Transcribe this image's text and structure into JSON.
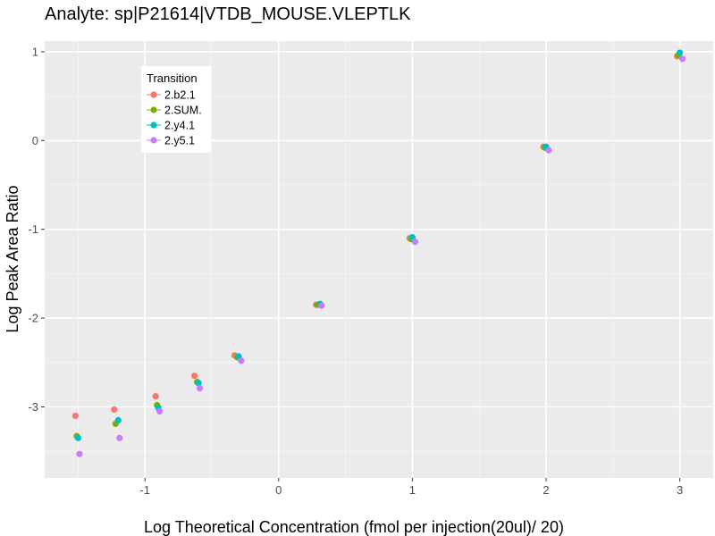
{
  "chart_data": {
    "type": "scatter",
    "title": "Analyte: sp|P21614|VTDB_MOUSE.VLEPTLK",
    "xlabel": "Log Theoretical Concentration (fmol per injection(20ul)/ 20)",
    "ylabel": "Log Peak Area Ratio",
    "xlim": [
      -1.75,
      3.25
    ],
    "ylim": [
      -3.8,
      1.12
    ],
    "x_ticks": [
      -1,
      0,
      1,
      2,
      3
    ],
    "x_tick_labels": [
      "-1",
      "0",
      "1",
      "2",
      "3"
    ],
    "y_ticks": [
      -3,
      -2,
      -1,
      0,
      1
    ],
    "y_tick_labels": [
      "-3",
      "-2",
      "-1",
      "0",
      "1"
    ],
    "grid": true,
    "legend": {
      "title": "Transition",
      "position": "top-left"
    },
    "series": [
      {
        "name": "2.b2.1",
        "color": "#F8766D",
        "points": [
          [
            -1.52,
            -3.1
          ],
          [
            -1.23,
            -3.03
          ],
          [
            -0.92,
            -2.88
          ],
          [
            -0.63,
            -2.65
          ],
          [
            -0.33,
            -2.42
          ],
          [
            0.28,
            -1.85
          ],
          [
            0.98,
            -1.1
          ],
          [
            1.98,
            -0.07
          ],
          [
            2.98,
            0.95
          ]
        ]
      },
      {
        "name": "2.SUM.",
        "color": "#7CAE00",
        "points": [
          [
            -1.51,
            -3.33
          ],
          [
            -1.22,
            -3.19
          ],
          [
            -0.91,
            -2.98
          ],
          [
            -0.61,
            -2.72
          ],
          [
            -0.31,
            -2.44
          ],
          [
            0.29,
            -1.85
          ],
          [
            0.99,
            -1.11
          ],
          [
            1.99,
            -0.08
          ],
          [
            2.99,
            0.96
          ]
        ]
      },
      {
        "name": "2.y4.1",
        "color": "#00BFC4",
        "points": [
          [
            -1.5,
            -3.35
          ],
          [
            -1.2,
            -3.15
          ],
          [
            -0.9,
            -3.01
          ],
          [
            -0.6,
            -2.73
          ],
          [
            -0.3,
            -2.43
          ],
          [
            0.31,
            -1.84
          ],
          [
            1.0,
            -1.09
          ],
          [
            2.0,
            -0.07
          ],
          [
            3.0,
            0.99
          ]
        ]
      },
      {
        "name": "2.y5.1",
        "color": "#C77CFF",
        "points": [
          [
            -1.49,
            -3.53
          ],
          [
            -1.19,
            -3.35
          ],
          [
            -0.89,
            -3.05
          ],
          [
            -0.59,
            -2.79
          ],
          [
            -0.28,
            -2.48
          ],
          [
            0.32,
            -1.86
          ],
          [
            1.02,
            -1.14
          ],
          [
            2.02,
            -0.11
          ],
          [
            3.02,
            0.92
          ]
        ]
      }
    ]
  }
}
